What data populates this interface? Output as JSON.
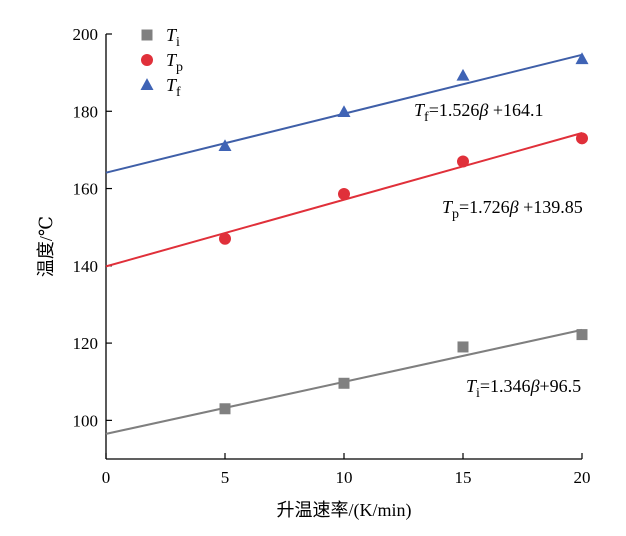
{
  "chart_data": {
    "type": "scatter",
    "xlabel": "升温速率/(K/min)",
    "ylabel": "温度/℃",
    "xlim": [
      0,
      20
    ],
    "ylim": [
      90,
      200
    ],
    "xticks": [
      "0",
      "5",
      "10",
      "15",
      "20"
    ],
    "yticks": [
      "100",
      "120",
      "140",
      "160",
      "180",
      "200"
    ],
    "grid": false,
    "legend_position": "top-left",
    "series": [
      {
        "name": "Ti",
        "legend_main": "T",
        "legend_sub": "i",
        "marker": "square",
        "color": "#808080",
        "line_color": "#7f7f7f",
        "x": [
          5,
          10,
          15,
          20
        ],
        "y": [
          103,
          109.6,
          119,
          122.2
        ],
        "fit": {
          "slope": 1.346,
          "intercept": 96.5
        },
        "equation": {
          "main": "T",
          "sub": "i",
          "rest": "=1.346",
          "beta": "β",
          "tail": "+96.5"
        }
      },
      {
        "name": "Tp",
        "legend_main": "T",
        "legend_sub": "p",
        "marker": "circle",
        "color": "#e0303a",
        "line_color": "#e0303a",
        "x": [
          5,
          10,
          15,
          20
        ],
        "y": [
          147,
          158.6,
          167,
          173
        ],
        "fit": {
          "slope": 1.726,
          "intercept": 139.85
        },
        "equation": {
          "main": "T",
          "sub": "p",
          "rest": "=1.726",
          "beta": "β",
          "tail": " +139.85"
        }
      },
      {
        "name": "Tf",
        "legend_main": "T",
        "legend_sub": "f",
        "marker": "triangle",
        "color": "#3f63b5",
        "line_color": "#3f5fa8",
        "x": [
          5,
          10,
          15,
          20
        ],
        "y": [
          171,
          179.8,
          189.2,
          193.5
        ],
        "fit": {
          "slope": 1.526,
          "intercept": 164.1
        },
        "equation": {
          "main": "T",
          "sub": "f",
          "rest": "=1.526",
          "beta": "β",
          "tail": " +164.1"
        }
      }
    ]
  }
}
